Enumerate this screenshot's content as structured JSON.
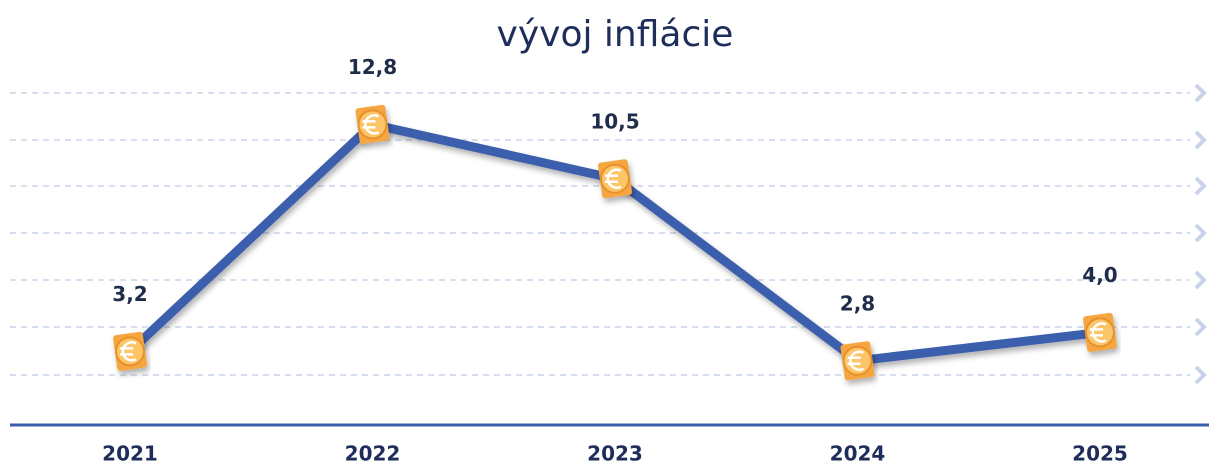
{
  "chart_data": {
    "type": "line",
    "title": "vývoj inflácie",
    "categories": [
      "2021",
      "2022",
      "2023",
      "2024",
      "2025"
    ],
    "values": [
      3.2,
      12.8,
      10.5,
      2.8,
      4.0
    ],
    "value_labels": [
      "3,2",
      "12,8",
      "10,5",
      "2,8",
      "4,0"
    ],
    "color": "#3a5ead",
    "ylim": [
      0,
      14
    ]
  }
}
